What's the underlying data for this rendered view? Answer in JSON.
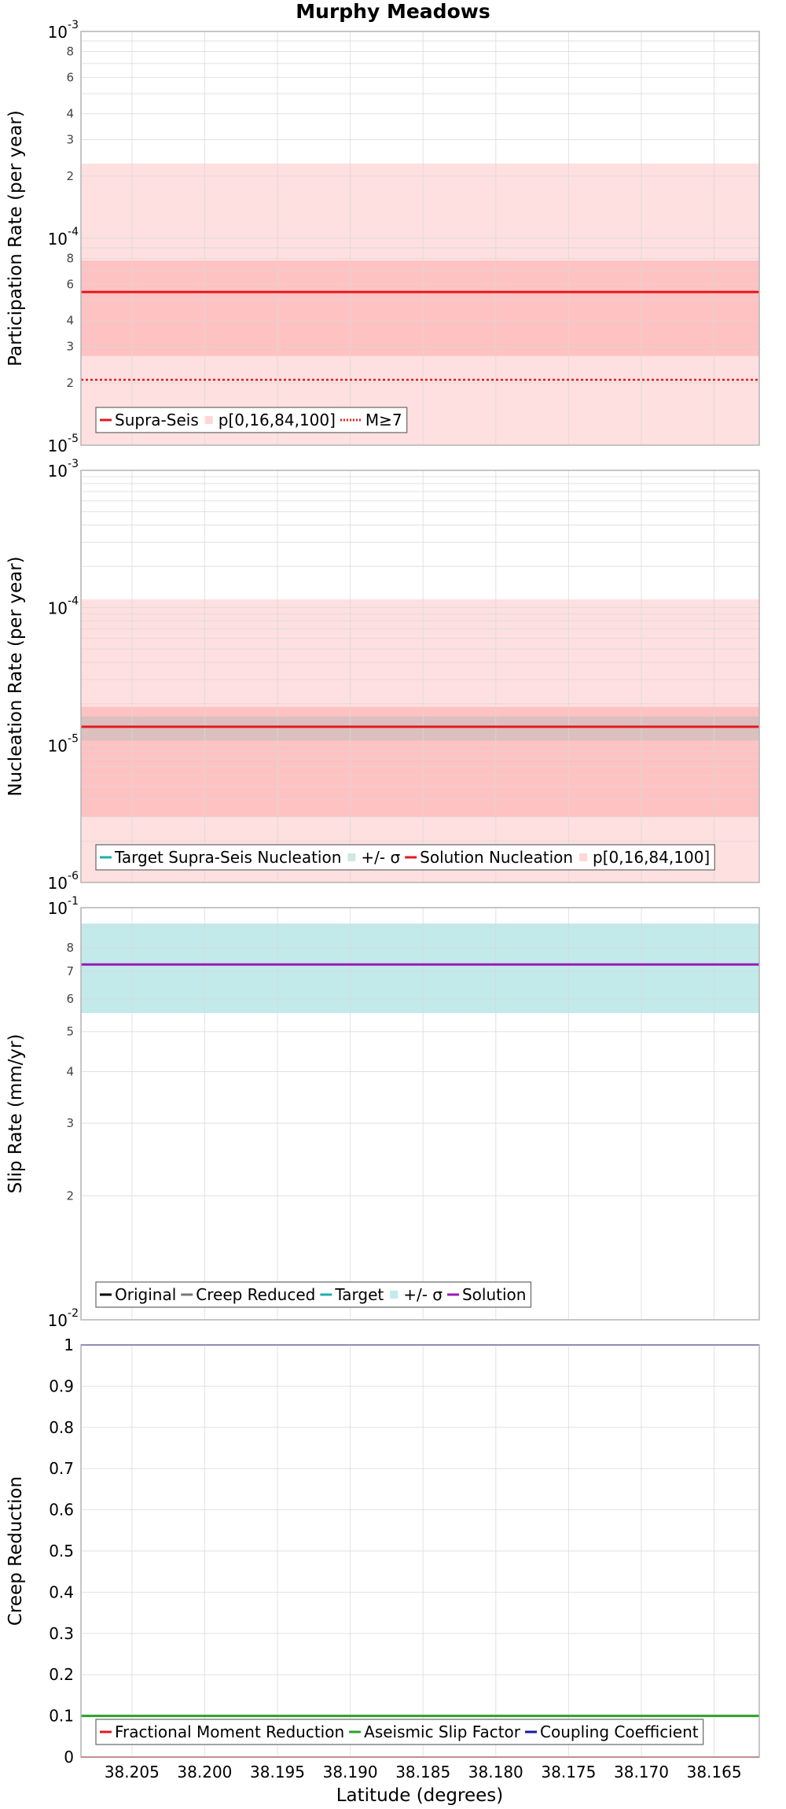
{
  "chart_data": {
    "title": "Murphy Meadows",
    "type": "line",
    "xlabel": "Latitude (degrees)",
    "xlim": [
      38.2085,
      38.1619
    ],
    "x_ticks": [
      "38.205",
      "38.200",
      "38.195",
      "38.190",
      "38.185",
      "38.180",
      "38.175",
      "38.170",
      "38.165"
    ],
    "x_tick_values": [
      38.205,
      38.2,
      38.195,
      38.19,
      38.185,
      38.18,
      38.175,
      38.17,
      38.165
    ],
    "panels": [
      {
        "id": "participation",
        "ylabel": "Participation Rate (per year)",
        "yscale": "log",
        "ylim": [
          1e-05,
          0.001
        ],
        "major_ticks": [
          {
            "v": 1e-05,
            "base": "10",
            "exp": "-5"
          },
          {
            "v": 0.0001,
            "base": "10",
            "exp": "-4"
          },
          {
            "v": 0.001,
            "base": "10",
            "exp": "-3"
          }
        ],
        "minor_ticks": [
          {
            "v": 2e-05,
            "label": "2"
          },
          {
            "v": 3e-05,
            "label": "3"
          },
          {
            "v": 4e-05,
            "label": "4"
          },
          {
            "v": 6e-05,
            "label": "6"
          },
          {
            "v": 8e-05,
            "label": "8"
          },
          {
            "v": 0.0002,
            "label": "2"
          },
          {
            "v": 0.0003,
            "label": "3"
          },
          {
            "v": 0.0004,
            "label": "4"
          },
          {
            "v": 0.0006,
            "label": "6"
          },
          {
            "v": 0.0008,
            "label": "8"
          }
        ],
        "bands": [
          {
            "low": 1e-05,
            "high": 0.00023,
            "color": "#ffe0e0"
          },
          {
            "low": 2.7e-05,
            "high": 7.8e-05,
            "color": "#ffc2c2"
          }
        ],
        "series": [
          {
            "name": "Supra-Seis",
            "y": 5.5e-05,
            "color": "#e41a1c",
            "dash": "",
            "width": 3
          },
          {
            "name": "M≥7",
            "y": 2.07e-05,
            "color": "#e41a1c",
            "dash": "3,3",
            "width": 2.5
          }
        ],
        "legend": [
          {
            "label": "Supra-Seis",
            "kind": "line",
            "color": "#e41a1c"
          },
          {
            "label": "p[0,16,84,100]",
            "kind": "box",
            "color": "#ffd6d6"
          },
          {
            "label": "M≥7",
            "kind": "dotted",
            "color": "#e41a1c"
          }
        ]
      },
      {
        "id": "nucleation",
        "ylabel": "Nucleation Rate (per year)",
        "yscale": "log",
        "ylim": [
          1e-06,
          0.001
        ],
        "major_ticks": [
          {
            "v": 1e-06,
            "base": "10",
            "exp": "-6"
          },
          {
            "v": 1e-05,
            "base": "10",
            "exp": "-5"
          },
          {
            "v": 0.0001,
            "base": "10",
            "exp": "-4"
          },
          {
            "v": 0.001,
            "base": "10",
            "exp": "-3"
          }
        ],
        "minor_ticks": [],
        "bands": [
          {
            "low": 1e-06,
            "high": 0.000115,
            "color": "#ffe0e0"
          },
          {
            "low": 3e-06,
            "high": 1.9e-05,
            "color": "#ffc2c2"
          },
          {
            "low": 1.08e-05,
            "high": 1.62e-05,
            "color": "#dcc0c0"
          }
        ],
        "series": [
          {
            "name": "Target Supra-Seis Nucleation",
            "y": 1.36e-05,
            "color": "#1ab0b0",
            "dash": "",
            "width": 2
          },
          {
            "name": "Solution Nucleation",
            "y": 1.36e-05,
            "color": "#e41a1c",
            "dash": "",
            "width": 3
          }
        ],
        "legend": [
          {
            "label": "Target Supra-Seis Nucleation",
            "kind": "line",
            "color": "#1ab0b0"
          },
          {
            "label": "+/- σ",
            "kind": "box",
            "color": "#cfe8e0"
          },
          {
            "label": "Solution Nucleation",
            "kind": "line",
            "color": "#e41a1c"
          },
          {
            "label": "p[0,16,84,100]",
            "kind": "box",
            "color": "#ffd6d6"
          }
        ]
      },
      {
        "id": "slip",
        "ylabel": "Slip Rate (mm/yr)",
        "yscale": "log",
        "ylim": [
          0.01,
          0.1
        ],
        "major_ticks": [
          {
            "v": 0.01,
            "base": "10",
            "exp": "-2"
          },
          {
            "v": 0.1,
            "base": "10",
            "exp": "-1"
          }
        ],
        "minor_ticks": [
          {
            "v": 0.02,
            "label": "2"
          },
          {
            "v": 0.03,
            "label": "3"
          },
          {
            "v": 0.04,
            "label": "4"
          },
          {
            "v": 0.05,
            "label": "5"
          },
          {
            "v": 0.06,
            "label": "6"
          },
          {
            "v": 0.07,
            "label": "7"
          },
          {
            "v": 0.08,
            "label": "8"
          }
        ],
        "bands": [
          {
            "low": 0.0555,
            "high": 0.0915,
            "color": "#c2eaea"
          }
        ],
        "series": [
          {
            "name": "Target",
            "y": 0.0728,
            "color": "#1ab0b0",
            "dash": "",
            "width": 2
          },
          {
            "name": "Solution",
            "y": 0.0728,
            "color": "#9a1ab8",
            "dash": "",
            "width": 3
          }
        ],
        "legend": [
          {
            "label": "Original",
            "kind": "line",
            "color": "#000000"
          },
          {
            "label": "Creep Reduced",
            "kind": "line",
            "color": "#777777"
          },
          {
            "label": "Target",
            "kind": "line",
            "color": "#1ab0b0"
          },
          {
            "label": "+/- σ",
            "kind": "box",
            "color": "#c2eaea"
          },
          {
            "label": "Solution",
            "kind": "line",
            "color": "#9a1ab8"
          }
        ]
      },
      {
        "id": "creep",
        "ylabel": "Creep Reduction",
        "yscale": "linear",
        "ylim": [
          0,
          1
        ],
        "major_ticks": [
          {
            "v": 0,
            "label": "0"
          },
          {
            "v": 0.1,
            "label": "0.1"
          },
          {
            "v": 0.2,
            "label": "0.2"
          },
          {
            "v": 0.3,
            "label": "0.3"
          },
          {
            "v": 0.4,
            "label": "0.4"
          },
          {
            "v": 0.5,
            "label": "0.5"
          },
          {
            "v": 0.6,
            "label": "0.6"
          },
          {
            "v": 0.7,
            "label": "0.7"
          },
          {
            "v": 0.8,
            "label": "0.8"
          },
          {
            "v": 0.9,
            "label": "0.9"
          },
          {
            "v": 1,
            "label": "1"
          }
        ],
        "minor_ticks": [],
        "bands": [],
        "series": [
          {
            "name": "Fractional Moment Reduction",
            "y": 0.0,
            "color": "#e41a1c",
            "dash": "",
            "width": 2
          },
          {
            "name": "Aseismic Slip Factor",
            "y": 0.1,
            "color": "#2ca02c",
            "dash": "",
            "width": 3
          },
          {
            "name": "Coupling Coefficient",
            "y": 1.0,
            "color": "#1a1aa0",
            "dash": "",
            "width": 2
          }
        ],
        "legend": [
          {
            "label": "Fractional Moment Reduction",
            "kind": "line",
            "color": "#e41a1c"
          },
          {
            "label": "Aseismic Slip Factor",
            "kind": "line",
            "color": "#2ca02c"
          },
          {
            "label": "Coupling Coefficient",
            "kind": "line",
            "color": "#1a1aa0"
          }
        ]
      }
    ]
  }
}
